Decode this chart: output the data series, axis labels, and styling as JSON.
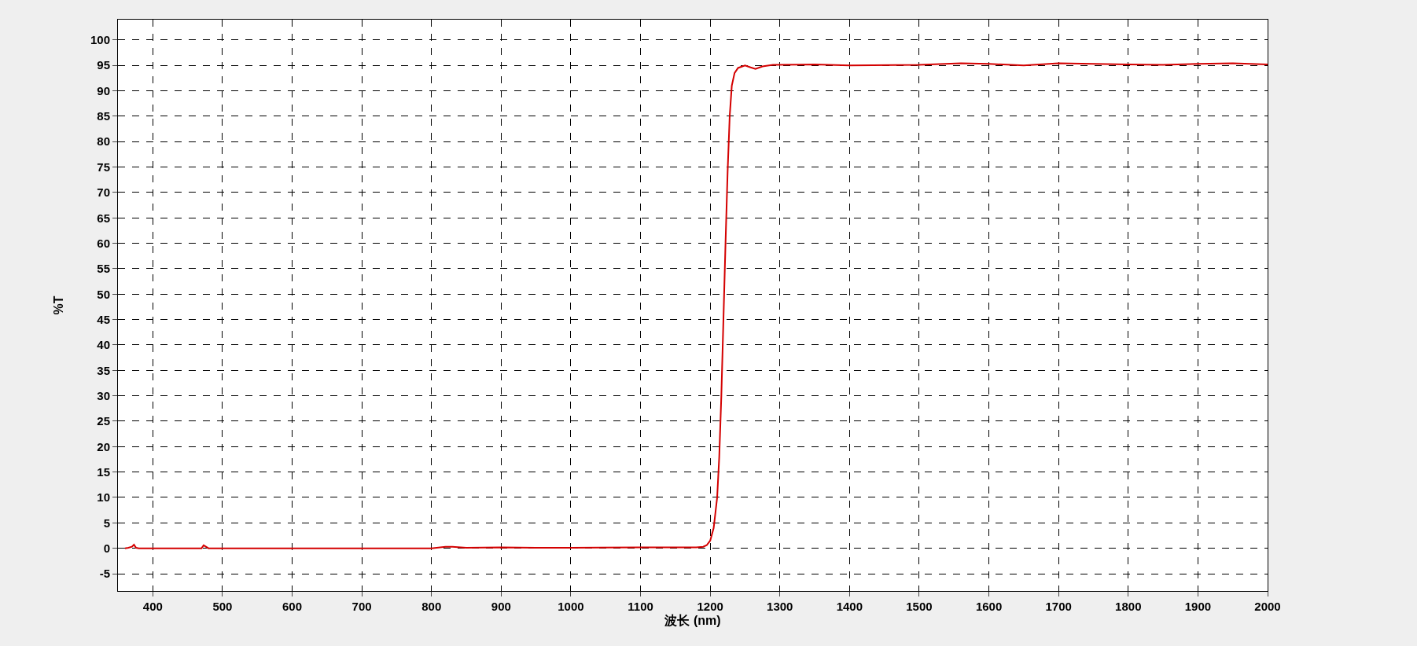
{
  "chart_data": {
    "type": "line",
    "xlabel": "波长 (nm)",
    "ylabel": "%T",
    "xlim": [
      350,
      2000
    ],
    "ylim": [
      -8.4,
      104
    ],
    "xticks": [
      400,
      500,
      600,
      700,
      800,
      900,
      1000,
      1100,
      1200,
      1300,
      1400,
      1500,
      1600,
      1700,
      1800,
      1900,
      2000
    ],
    "yticks": [
      -5,
      0,
      5,
      10,
      15,
      20,
      25,
      30,
      35,
      40,
      45,
      50,
      55,
      60,
      65,
      70,
      75,
      80,
      85,
      90,
      95,
      100
    ],
    "grid": true,
    "marker": "none",
    "line_style": "solid",
    "series": [
      {
        "color": "#d40000",
        "x": [
          360,
          365,
          370,
          373,
          376,
          380,
          400,
          450,
          470,
          473,
          480,
          540,
          600,
          700,
          800,
          820,
          830,
          850,
          900,
          950,
          1000,
          1100,
          1180,
          1190,
          1195,
          1200,
          1205,
          1210,
          1213,
          1216,
          1219,
          1222,
          1225,
          1228,
          1231,
          1235,
          1240,
          1250,
          1258,
          1265,
          1275,
          1290,
          1350,
          1400,
          1500,
          1560,
          1600,
          1650,
          1700,
          1750,
          1800,
          1850,
          1900,
          1950,
          2000
        ],
        "values": [
          0,
          0.1,
          0.3,
          0.7,
          0.1,
          0,
          0,
          0,
          0,
          0.6,
          0,
          0,
          0,
          0,
          0,
          0.3,
          0.3,
          0.1,
          0.2,
          0.1,
          0.1,
          0.2,
          0.2,
          0.3,
          0.6,
          1.5,
          4,
          10,
          18,
          30,
          45,
          60,
          74,
          85,
          91,
          93.5,
          94.5,
          95,
          94.6,
          94.3,
          94.8,
          95.1,
          95.2,
          95,
          95.1,
          95.4,
          95.3,
          95,
          95.4,
          95.3,
          95.2,
          95.1,
          95.3,
          95.4,
          95.2
        ]
      }
    ]
  }
}
